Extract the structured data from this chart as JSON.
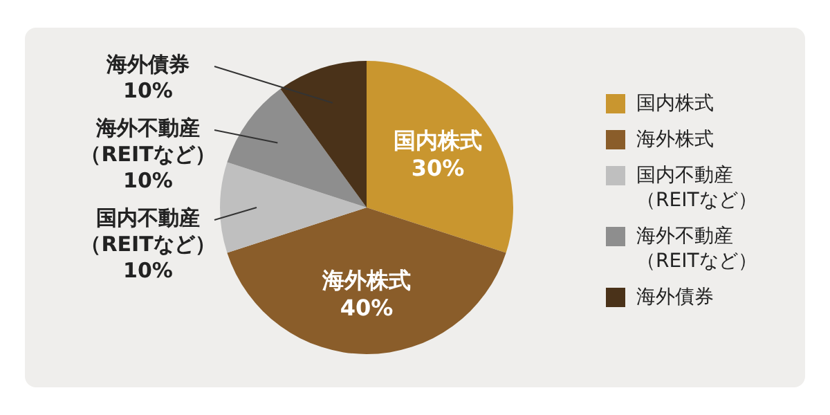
{
  "chart_data": {
    "type": "pie",
    "categories": [
      "国内株式",
      "海外株式",
      "国内不動産（REITなど）",
      "海外不動産（REITなど）",
      "海外債券"
    ],
    "values": [
      30,
      40,
      10,
      10,
      10
    ],
    "colors": [
      "#c9962f",
      "#8a5d2a",
      "#bfbfbf",
      "#8e8e8e",
      "#4a3219"
    ],
    "value_labels": [
      "30%",
      "40%",
      "10%",
      "10%",
      "10%"
    ],
    "legend": "right"
  }
}
